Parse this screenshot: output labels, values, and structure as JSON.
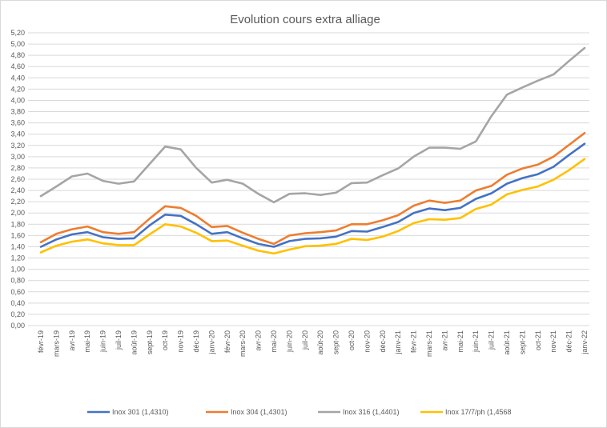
{
  "chart_data": {
    "type": "line",
    "title": "Evolution  cours extra alliage",
    "xlabel": "",
    "ylabel": "",
    "ylim": [
      0,
      5.2
    ],
    "ytick_step": 0.2,
    "ytick_labels": [
      "0,00",
      "0,20",
      "0,40",
      "0,60",
      "0,80",
      "1,00",
      "1,20",
      "1,40",
      "1,60",
      "1,80",
      "2,00",
      "2,20",
      "2,40",
      "2,60",
      "2,80",
      "3,00",
      "3,20",
      "3,40",
      "3,60",
      "3,80",
      "4,00",
      "4,20",
      "4,40",
      "4,60",
      "4,80",
      "5,00",
      "5,20"
    ],
    "grid": true,
    "legend_position": "bottom",
    "categories": [
      "févr-19",
      "mars-19",
      "avr-19",
      "mai-19",
      "juin-19",
      "juil-19",
      "août-19",
      "sept-19",
      "oct-19",
      "nov-19",
      "déc-19",
      "janv-20",
      "févr-20",
      "mars-20",
      "avr-20",
      "mai-20",
      "juin-20",
      "juil-20",
      "août-20",
      "sept-20",
      "oct-20",
      "nov-20",
      "déc-20",
      "janv-21",
      "févr-21",
      "mars-21",
      "avr-21",
      "mai-21",
      "juin-21",
      "juil-21",
      "août-21",
      "sept-21",
      "oct-21",
      "nov-21",
      "déc-21",
      "janv-22"
    ],
    "series": [
      {
        "name": "Inox 301 (1,4310)",
        "color": "#4472c4",
        "values": [
          1.4,
          1.53,
          1.62,
          1.66,
          1.57,
          1.54,
          1.55,
          1.78,
          1.97,
          1.95,
          1.8,
          1.63,
          1.66,
          1.55,
          1.45,
          1.4,
          1.5,
          1.54,
          1.55,
          1.58,
          1.68,
          1.67,
          1.75,
          1.84,
          2.0,
          2.08,
          2.05,
          2.09,
          2.25,
          2.35,
          2.52,
          2.62,
          2.69,
          2.82,
          3.03,
          3.23
        ]
      },
      {
        "name": "Inox 304 (1,4301)",
        "color": "#ed7d31",
        "values": [
          1.48,
          1.63,
          1.71,
          1.76,
          1.66,
          1.63,
          1.66,
          1.9,
          2.12,
          2.09,
          1.95,
          1.75,
          1.77,
          1.65,
          1.54,
          1.45,
          1.6,
          1.64,
          1.66,
          1.69,
          1.8,
          1.8,
          1.87,
          1.96,
          2.13,
          2.22,
          2.18,
          2.22,
          2.4,
          2.48,
          2.68,
          2.79,
          2.86,
          3.0,
          3.21,
          3.42
        ]
      },
      {
        "name": "Inox 316 (1,4401)",
        "color": "#a5a5a5",
        "values": [
          2.3,
          2.47,
          2.65,
          2.7,
          2.57,
          2.52,
          2.56,
          2.87,
          3.18,
          3.13,
          2.8,
          2.54,
          2.59,
          2.52,
          2.34,
          2.19,
          2.34,
          2.35,
          2.32,
          2.36,
          2.53,
          2.54,
          2.67,
          2.79,
          3.0,
          3.16,
          3.16,
          3.14,
          3.27,
          3.72,
          4.1,
          4.23,
          4.35,
          4.46,
          4.7,
          4.93
        ]
      },
      {
        "name": "Inox 17/7/ph (1,4568",
        "color": "#ffc000",
        "values": [
          1.3,
          1.42,
          1.49,
          1.53,
          1.46,
          1.43,
          1.43,
          1.62,
          1.8,
          1.76,
          1.65,
          1.5,
          1.51,
          1.42,
          1.33,
          1.28,
          1.35,
          1.41,
          1.42,
          1.45,
          1.54,
          1.52,
          1.58,
          1.68,
          1.82,
          1.89,
          1.88,
          1.91,
          2.07,
          2.15,
          2.33,
          2.41,
          2.47,
          2.59,
          2.76,
          2.96
        ]
      }
    ]
  }
}
